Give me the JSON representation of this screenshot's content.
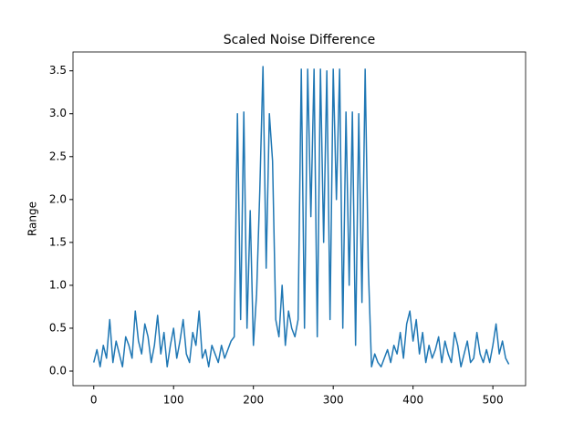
{
  "chart_data": {
    "type": "line",
    "title": "Scaled Noise Difference",
    "y_label": "Range",
    "color": "#1f77b4",
    "xlim": [
      -26,
      541
    ],
    "ylim": [
      -0.17,
      3.72
    ],
    "xticks": [
      0,
      100,
      200,
      300,
      400,
      500
    ],
    "yticks": [
      {
        "value": 0,
        "label": "0.0"
      },
      0.5,
      {
        "value": 1,
        "label": "1.0"
      },
      1.5,
      {
        "value": 2,
        "label": "2.0"
      },
      2.5,
      {
        "value": 3,
        "label": "3.0"
      },
      3.5
    ],
    "x": [
      0,
      4,
      8,
      12,
      16,
      20,
      24,
      28,
      32,
      36,
      40,
      44,
      48,
      52,
      56,
      60,
      64,
      68,
      72,
      76,
      80,
      84,
      88,
      92,
      96,
      100,
      104,
      108,
      112,
      116,
      120,
      124,
      128,
      132,
      136,
      140,
      144,
      148,
      152,
      156,
      160,
      164,
      168,
      172,
      176,
      180,
      184,
      188,
      192,
      196,
      200,
      204,
      208,
      212,
      216,
      220,
      224,
      228,
      232,
      236,
      240,
      244,
      248,
      252,
      256,
      260,
      264,
      268,
      272,
      276,
      280,
      284,
      288,
      292,
      296,
      300,
      304,
      308,
      312,
      316,
      320,
      324,
      328,
      332,
      336,
      340,
      344,
      348,
      352,
      356,
      360,
      364,
      368,
      372,
      376,
      380,
      384,
      388,
      392,
      396,
      400,
      404,
      408,
      412,
      416,
      420,
      424,
      428,
      432,
      436,
      440,
      444,
      448,
      452,
      456,
      460,
      464,
      468,
      472,
      476,
      480,
      484,
      488,
      492,
      496,
      500,
      504,
      508,
      512,
      516,
      520
    ],
    "values": [
      0.1,
      0.25,
      0.05,
      0.3,
      0.15,
      0.6,
      0.1,
      0.35,
      0.2,
      0.05,
      0.4,
      0.3,
      0.15,
      0.7,
      0.35,
      0.2,
      0.55,
      0.4,
      0.1,
      0.3,
      0.65,
      0.2,
      0.45,
      0.05,
      0.3,
      0.5,
      0.15,
      0.35,
      0.6,
      0.2,
      0.1,
      0.45,
      0.3,
      0.7,
      0.15,
      0.25,
      0.05,
      0.3,
      0.2,
      0.1,
      0.3,
      0.15,
      0.25,
      0.35,
      0.4,
      3.0,
      0.6,
      3.02,
      0.5,
      1.87,
      0.3,
      0.9,
      2.1,
      3.55,
      1.2,
      3.0,
      2.45,
      0.6,
      0.4,
      1.0,
      0.3,
      0.7,
      0.5,
      0.4,
      0.6,
      3.52,
      0.5,
      3.52,
      1.8,
      3.52,
      0.4,
      3.52,
      1.5,
      3.5,
      0.6,
      3.52,
      2.0,
      3.52,
      0.5,
      3.02,
      1.0,
      3.02,
      0.3,
      3.0,
      0.8,
      3.52,
      1.2,
      0.05,
      0.2,
      0.1,
      0.05,
      0.15,
      0.25,
      0.1,
      0.3,
      0.2,
      0.45,
      0.15,
      0.55,
      0.7,
      0.35,
      0.6,
      0.2,
      0.45,
      0.1,
      0.3,
      0.15,
      0.25,
      0.4,
      0.1,
      0.35,
      0.2,
      0.1,
      0.45,
      0.3,
      0.05,
      0.2,
      0.35,
      0.1,
      0.15,
      0.45,
      0.2,
      0.1,
      0.25,
      0.1,
      0.3,
      0.55,
      0.2,
      0.35,
      0.15,
      0.08
    ]
  }
}
